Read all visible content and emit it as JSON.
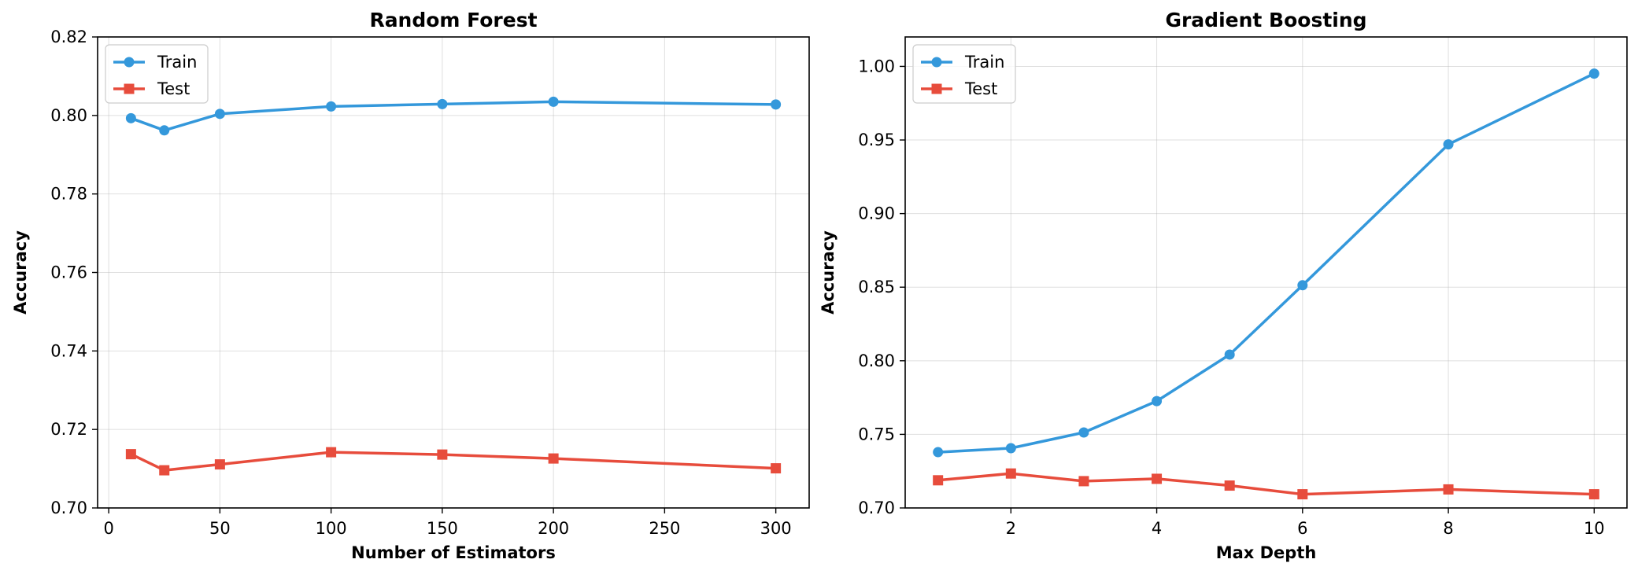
{
  "chart_data": [
    {
      "type": "line",
      "title": "Random Forest",
      "xlabel": "Number of Estimators",
      "ylabel": "Accuracy",
      "xlim": [
        -5,
        315
      ],
      "ylim": [
        0.7,
        0.82
      ],
      "xticks": [
        0,
        50,
        100,
        150,
        200,
        250,
        300
      ],
      "yticks": [
        0.7,
        0.72,
        0.74,
        0.76,
        0.78,
        0.8,
        0.82
      ],
      "x": [
        10,
        25,
        50,
        100,
        150,
        200,
        300
      ],
      "grid": true,
      "legend_position": "top-left",
      "series": [
        {
          "name": "Train",
          "marker": "circle",
          "color": "#3498db",
          "values": [
            0.7993,
            0.7962,
            0.8004,
            0.8023,
            0.8029,
            0.8035,
            0.8028
          ]
        },
        {
          "name": "Test",
          "marker": "square",
          "color": "#e74c3c",
          "values": [
            0.7137,
            0.7096,
            0.7111,
            0.7142,
            0.7136,
            0.7126,
            0.7101
          ]
        }
      ]
    },
    {
      "type": "line",
      "title": "Gradient Boosting",
      "xlabel": "Max Depth",
      "ylabel": "Accuracy",
      "xlim": [
        0.55,
        10.45
      ],
      "ylim": [
        0.7,
        1.02
      ],
      "xticks": [
        2,
        4,
        6,
        8,
        10
      ],
      "yticks": [
        0.7,
        0.75,
        0.8,
        0.85,
        0.9,
        0.95,
        1.0
      ],
      "x": [
        1,
        2,
        3,
        4,
        5,
        6,
        8,
        10
      ],
      "grid": true,
      "legend_position": "top-left",
      "series": [
        {
          "name": "Train",
          "marker": "circle",
          "color": "#3498db",
          "values": [
            0.7379,
            0.7406,
            0.7513,
            0.7726,
            0.8042,
            0.8513,
            0.947,
            0.9951
          ]
        },
        {
          "name": "Test",
          "marker": "square",
          "color": "#e74c3c",
          "values": [
            0.7188,
            0.7234,
            0.7182,
            0.7198,
            0.7152,
            0.7093,
            0.7126,
            0.7093
          ]
        }
      ]
    }
  ]
}
